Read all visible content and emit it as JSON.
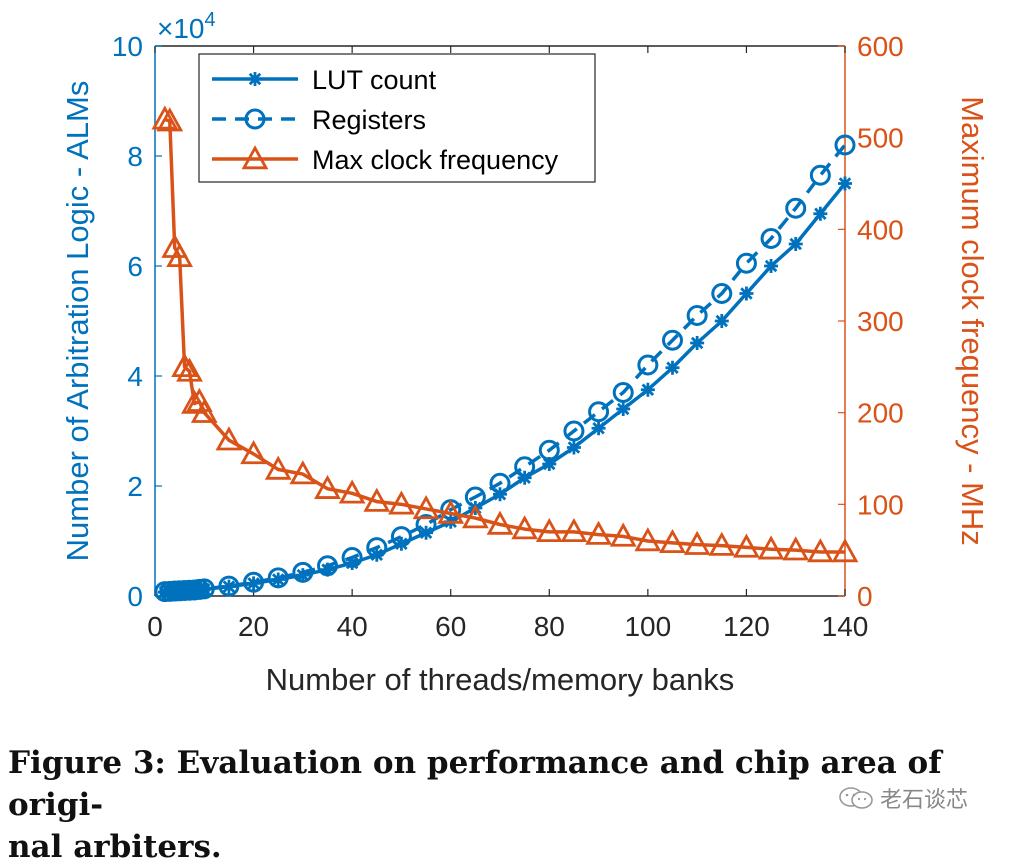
{
  "chart_data": {
    "type": "line",
    "xlabel": "Number of threads/memory banks",
    "ylabel_left": "Number of Arbitration Logic - ALMs",
    "ylabel_right": "Maximum clock frequency - MHz",
    "left_exponent_base": "×10",
    "left_exponent_power": "4",
    "xlim": [
      0,
      140
    ],
    "ylim_left": [
      0,
      100000
    ],
    "ylim_right": [
      0,
      600
    ],
    "x_ticks": [
      0,
      20,
      40,
      60,
      80,
      100,
      120,
      140
    ],
    "y_left_ticks": [
      0,
      2,
      4,
      6,
      8,
      10
    ],
    "y_right_ticks": [
      0,
      100,
      200,
      300,
      400,
      500,
      600
    ],
    "legend_position": "top-left",
    "series": [
      {
        "name": "LUT count",
        "axis": "left",
        "color": "#0072BD",
        "marker": "asterisk",
        "line": "solid",
        "x": [
          2,
          3,
          4,
          5,
          6,
          7,
          8,
          9,
          10,
          15,
          20,
          25,
          30,
          35,
          40,
          45,
          50,
          55,
          60,
          65,
          70,
          75,
          80,
          85,
          90,
          95,
          100,
          105,
          110,
          115,
          120,
          125,
          130,
          135,
          140
        ],
        "values": [
          700,
          750,
          800,
          850,
          900,
          950,
          1000,
          1100,
          1200,
          1700,
          2300,
          3000,
          3800,
          4800,
          6000,
          7500,
          9500,
          11500,
          13500,
          16000,
          18500,
          21500,
          24000,
          27000,
          30500,
          34000,
          37500,
          41500,
          46000,
          50000,
          55000,
          60000,
          64000,
          69500,
          75000
        ]
      },
      {
        "name": "Registers",
        "axis": "left",
        "color": "#0072BD",
        "marker": "circle",
        "line": "dashed",
        "x": [
          2,
          3,
          4,
          5,
          6,
          7,
          8,
          9,
          10,
          15,
          20,
          25,
          30,
          35,
          40,
          45,
          50,
          55,
          60,
          65,
          70,
          75,
          80,
          85,
          90,
          95,
          100,
          105,
          110,
          115,
          120,
          125,
          130,
          135,
          140
        ],
        "values": [
          800,
          850,
          900,
          950,
          1000,
          1050,
          1100,
          1200,
          1300,
          1800,
          2500,
          3300,
          4300,
          5500,
          7000,
          8800,
          10800,
          13000,
          15700,
          18000,
          20500,
          23500,
          26500,
          30000,
          33500,
          37000,
          42000,
          46500,
          51000,
          55000,
          60500,
          65000,
          70500,
          76500,
          82000
        ]
      },
      {
        "name": "Max clock frequency",
        "axis": "right",
        "color": "#D95319",
        "marker": "triangle",
        "line": "solid",
        "x": [
          2,
          3,
          4,
          5,
          6,
          7,
          8,
          9,
          10,
          15,
          20,
          25,
          30,
          35,
          40,
          45,
          50,
          55,
          60,
          65,
          70,
          75,
          80,
          85,
          90,
          95,
          100,
          105,
          110,
          115,
          120,
          125,
          130,
          135,
          140
        ],
        "values": [
          520,
          518,
          380,
          370,
          250,
          245,
          210,
          212,
          200,
          170,
          155,
          138,
          133,
          117,
          112,
          103,
          100,
          95,
          90,
          85,
          78,
          73,
          70,
          70,
          67,
          65,
          60,
          58,
          56,
          55,
          53,
          51,
          50,
          48,
          48
        ]
      }
    ]
  },
  "caption": {
    "line1": "Figure 3: Evaluation on performance and chip area of origi-",
    "line2": "nal arbiters."
  },
  "watermark": {
    "text": "老石谈芯"
  }
}
